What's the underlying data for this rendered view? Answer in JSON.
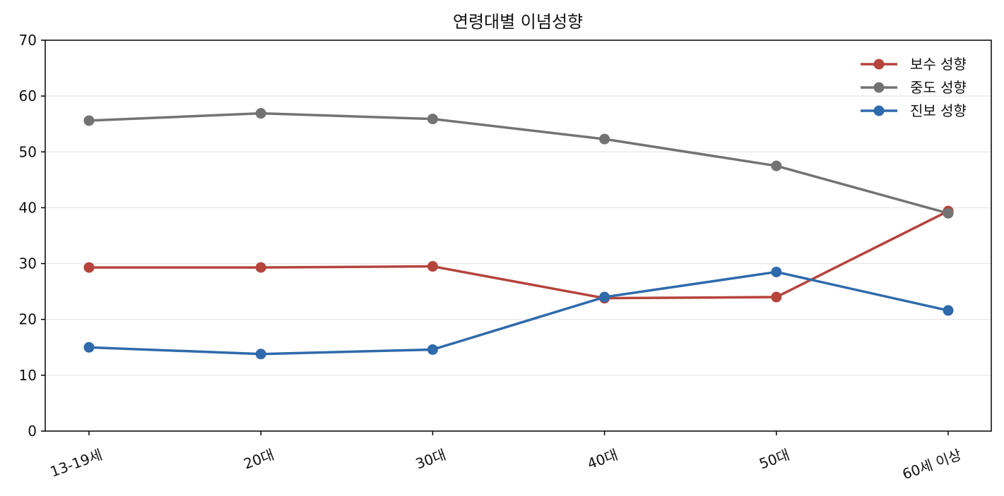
{
  "chart_data": {
    "type": "line",
    "title": "연령대별 이념성향",
    "xlabel": "",
    "ylabel": "",
    "categories": [
      "13-19세",
      "20대",
      "30대",
      "40대",
      "50대",
      "60세 이상"
    ],
    "ylim": [
      0,
      70
    ],
    "yticks": [
      0,
      10,
      20,
      30,
      40,
      50,
      60,
      70
    ],
    "grid": "horizontal",
    "legend_position": "top-right",
    "series": [
      {
        "name": "보수 성향",
        "color": "#b5443d",
        "values": [
          29.3,
          29.3,
          29.5,
          23.8,
          24.0,
          39.4
        ]
      },
      {
        "name": "중도 성향",
        "color": "#737373",
        "values": [
          55.6,
          56.9,
          55.9,
          52.3,
          47.5,
          39.0
        ]
      },
      {
        "name": "진보 성향",
        "color": "#2f6aab",
        "values": [
          15.0,
          13.8,
          14.6,
          24.0,
          28.5,
          21.6
        ]
      }
    ]
  }
}
